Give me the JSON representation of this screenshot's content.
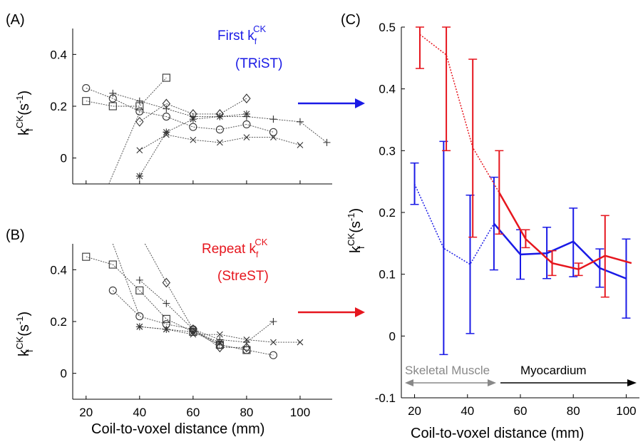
{
  "colors": {
    "blue": "#1a1ae6",
    "red": "#e6161e",
    "black": "#000000",
    "gray": "#888888"
  },
  "panels": {
    "a": "(A)",
    "b": "(B)",
    "c": "(C)"
  },
  "ylabel": {
    "main": "k",
    "sup": "CK",
    "sub": "f",
    "unit": " (s",
    "unitsup": "-1",
    "close": ")"
  },
  "xlabel": "Coil-to-voxel distance (mm)",
  "annotations": {
    "first_line1": "First k",
    "first_sub": "f",
    "first_sup": "CK",
    "first_line2": "(TRiST)",
    "repeat_line1": "Repeat k",
    "repeat_sub": "f",
    "repeat_sup": "CK",
    "repeat_line2": "(StreST)"
  },
  "regions": {
    "skeletal": "Skeletal Muscle",
    "myocardium": "Myocardium"
  },
  "chart_data": [
    {
      "panel": "A",
      "type": "line",
      "xlim": [
        15,
        112
      ],
      "ylim": [
        -0.1,
        0.5
      ],
      "xticks": [
        20,
        40,
        60,
        80,
        100
      ],
      "yticks": [
        0,
        0.2,
        0.4
      ],
      "ytick_labels": [
        "0",
        "0.2",
        "0.4"
      ],
      "show_xtick_labels": false,
      "series": [
        {
          "marker": "circle",
          "x": [
            20,
            30,
            40,
            50,
            60,
            70,
            80,
            90
          ],
          "y": [
            0.27,
            0.23,
            0.18,
            0.16,
            0.12,
            0.11,
            0.13,
            0.1
          ]
        },
        {
          "marker": "square",
          "x": [
            20,
            30,
            40,
            50
          ],
          "y": [
            0.22,
            0.2,
            0.2,
            0.31
          ]
        },
        {
          "marker": "plus",
          "x": [
            30,
            40,
            50,
            60,
            70,
            80,
            90,
            100,
            110
          ],
          "y": [
            0.25,
            0.22,
            0.19,
            0.16,
            0.16,
            0.16,
            0.15,
            0.14,
            0.06
          ]
        },
        {
          "marker": "diamond",
          "x": [
            40,
            50,
            60,
            70,
            80
          ],
          "y": [
            0.14,
            0.21,
            0.17,
            0.17,
            0.23
          ]
        },
        {
          "marker": "star",
          "x": [
            40,
            50,
            60,
            70,
            80
          ],
          "y": [
            -0.07,
            0.1,
            0.15,
            0.16,
            0.17
          ]
        },
        {
          "marker": "cross",
          "x": [
            40,
            50,
            60,
            70,
            80,
            90,
            100
          ],
          "y": [
            0.03,
            0.09,
            0.07,
            0.06,
            0.08,
            0.08,
            0.05
          ]
        },
        {
          "marker": "none",
          "x": [
            28.5,
            41
          ],
          "y": [
            -0.1,
            0.2
          ]
        }
      ]
    },
    {
      "panel": "B",
      "type": "line",
      "xlim": [
        15,
        112
      ],
      "ylim": [
        -0.1,
        0.5
      ],
      "xticks": [
        20,
        40,
        60,
        80,
        100
      ],
      "xtick_labels": [
        "20",
        "40",
        "60",
        "80",
        "100"
      ],
      "yticks": [
        0,
        0.2,
        0.4
      ],
      "ytick_labels": [
        "0",
        "0.2",
        "0.4"
      ],
      "series": [
        {
          "marker": "circle",
          "x": [
            30,
            40,
            50,
            60,
            70,
            80,
            90
          ],
          "y": [
            0.32,
            0.22,
            0.19,
            0.17,
            0.11,
            0.09,
            0.07
          ]
        },
        {
          "marker": "square",
          "x": [
            20,
            30,
            40,
            50,
            60,
            70,
            80
          ],
          "y": [
            0.45,
            0.42,
            0.32,
            0.21,
            0.16,
            0.11,
            0.09
          ]
        },
        {
          "marker": "plus",
          "x": [
            40,
            50,
            60,
            70,
            80,
            90
          ],
          "y": [
            0.36,
            0.27,
            0.17,
            0.13,
            0.12,
            0.2
          ]
        },
        {
          "marker": "diamond",
          "x": [
            50,
            60,
            70,
            80
          ],
          "y": [
            0.35,
            0.17,
            0.1,
            0.1
          ]
        },
        {
          "marker": "star",
          "x": [
            40,
            50,
            60,
            70
          ],
          "y": [
            0.18,
            0.17,
            0.16,
            0.12
          ]
        },
        {
          "marker": "cross",
          "x": [
            40,
            50,
            60,
            70,
            80,
            90,
            100
          ],
          "y": [
            0.18,
            0.17,
            0.15,
            0.15,
            0.13,
            0.12,
            0.12
          ]
        },
        {
          "marker": "none",
          "x": [
            30,
            40
          ],
          "y": [
            0.5,
            0.22
          ]
        },
        {
          "marker": "none",
          "x": [
            42,
            50
          ],
          "y": [
            0.5,
            0.35
          ]
        }
      ]
    },
    {
      "panel": "C",
      "type": "line",
      "xlim": [
        15,
        105
      ],
      "ylim": [
        -0.1,
        0.5
      ],
      "xticks": [
        20,
        40,
        60,
        80,
        100
      ],
      "xtick_labels": [
        "20",
        "40",
        "60",
        "80",
        "100"
      ],
      "yticks": [
        -0.1,
        0,
        0.1,
        0.2,
        0.3,
        0.4,
        0.5
      ],
      "ytick_labels": [
        "-0.1",
        "0",
        "0.1",
        "0.2",
        "0.3",
        "0.4",
        "0.5"
      ],
      "series": [
        {
          "name": "First",
          "color": "#1a1ae6",
          "x": [
            20,
            31,
            41,
            50,
            60,
            70,
            80,
            90,
            100
          ],
          "y": [
            0.246,
            0.142,
            0.116,
            0.182,
            0.132,
            0.134,
            0.153,
            0.11,
            0.093
          ],
          "err_low": [
            0.213,
            -0.03,
            0.004,
            0.107,
            0.092,
            0.093,
            0.096,
            0.079,
            0.029
          ],
          "err_high": [
            0.28,
            0.315,
            0.228,
            0.257,
            0.172,
            0.176,
            0.207,
            0.141,
            0.157
          ],
          "dotted_until": 50
        },
        {
          "name": "Repeat",
          "color": "#e6161e",
          "x": [
            22,
            32,
            42,
            52,
            62,
            72,
            82,
            92,
            102
          ],
          "y": [
            0.488,
            0.455,
            0.305,
            0.232,
            0.157,
            0.118,
            0.108,
            0.13,
            0.118
          ],
          "err_low": [
            0.433,
            0.3,
            0.16,
            0.165,
            0.143,
            0.098,
            0.098,
            0.063,
            null
          ],
          "err_high": [
            0.543,
            0.5,
            0.448,
            0.3,
            0.172,
            0.138,
            0.118,
            0.195,
            null
          ],
          "dotted_until": 52
        }
      ]
    }
  ]
}
